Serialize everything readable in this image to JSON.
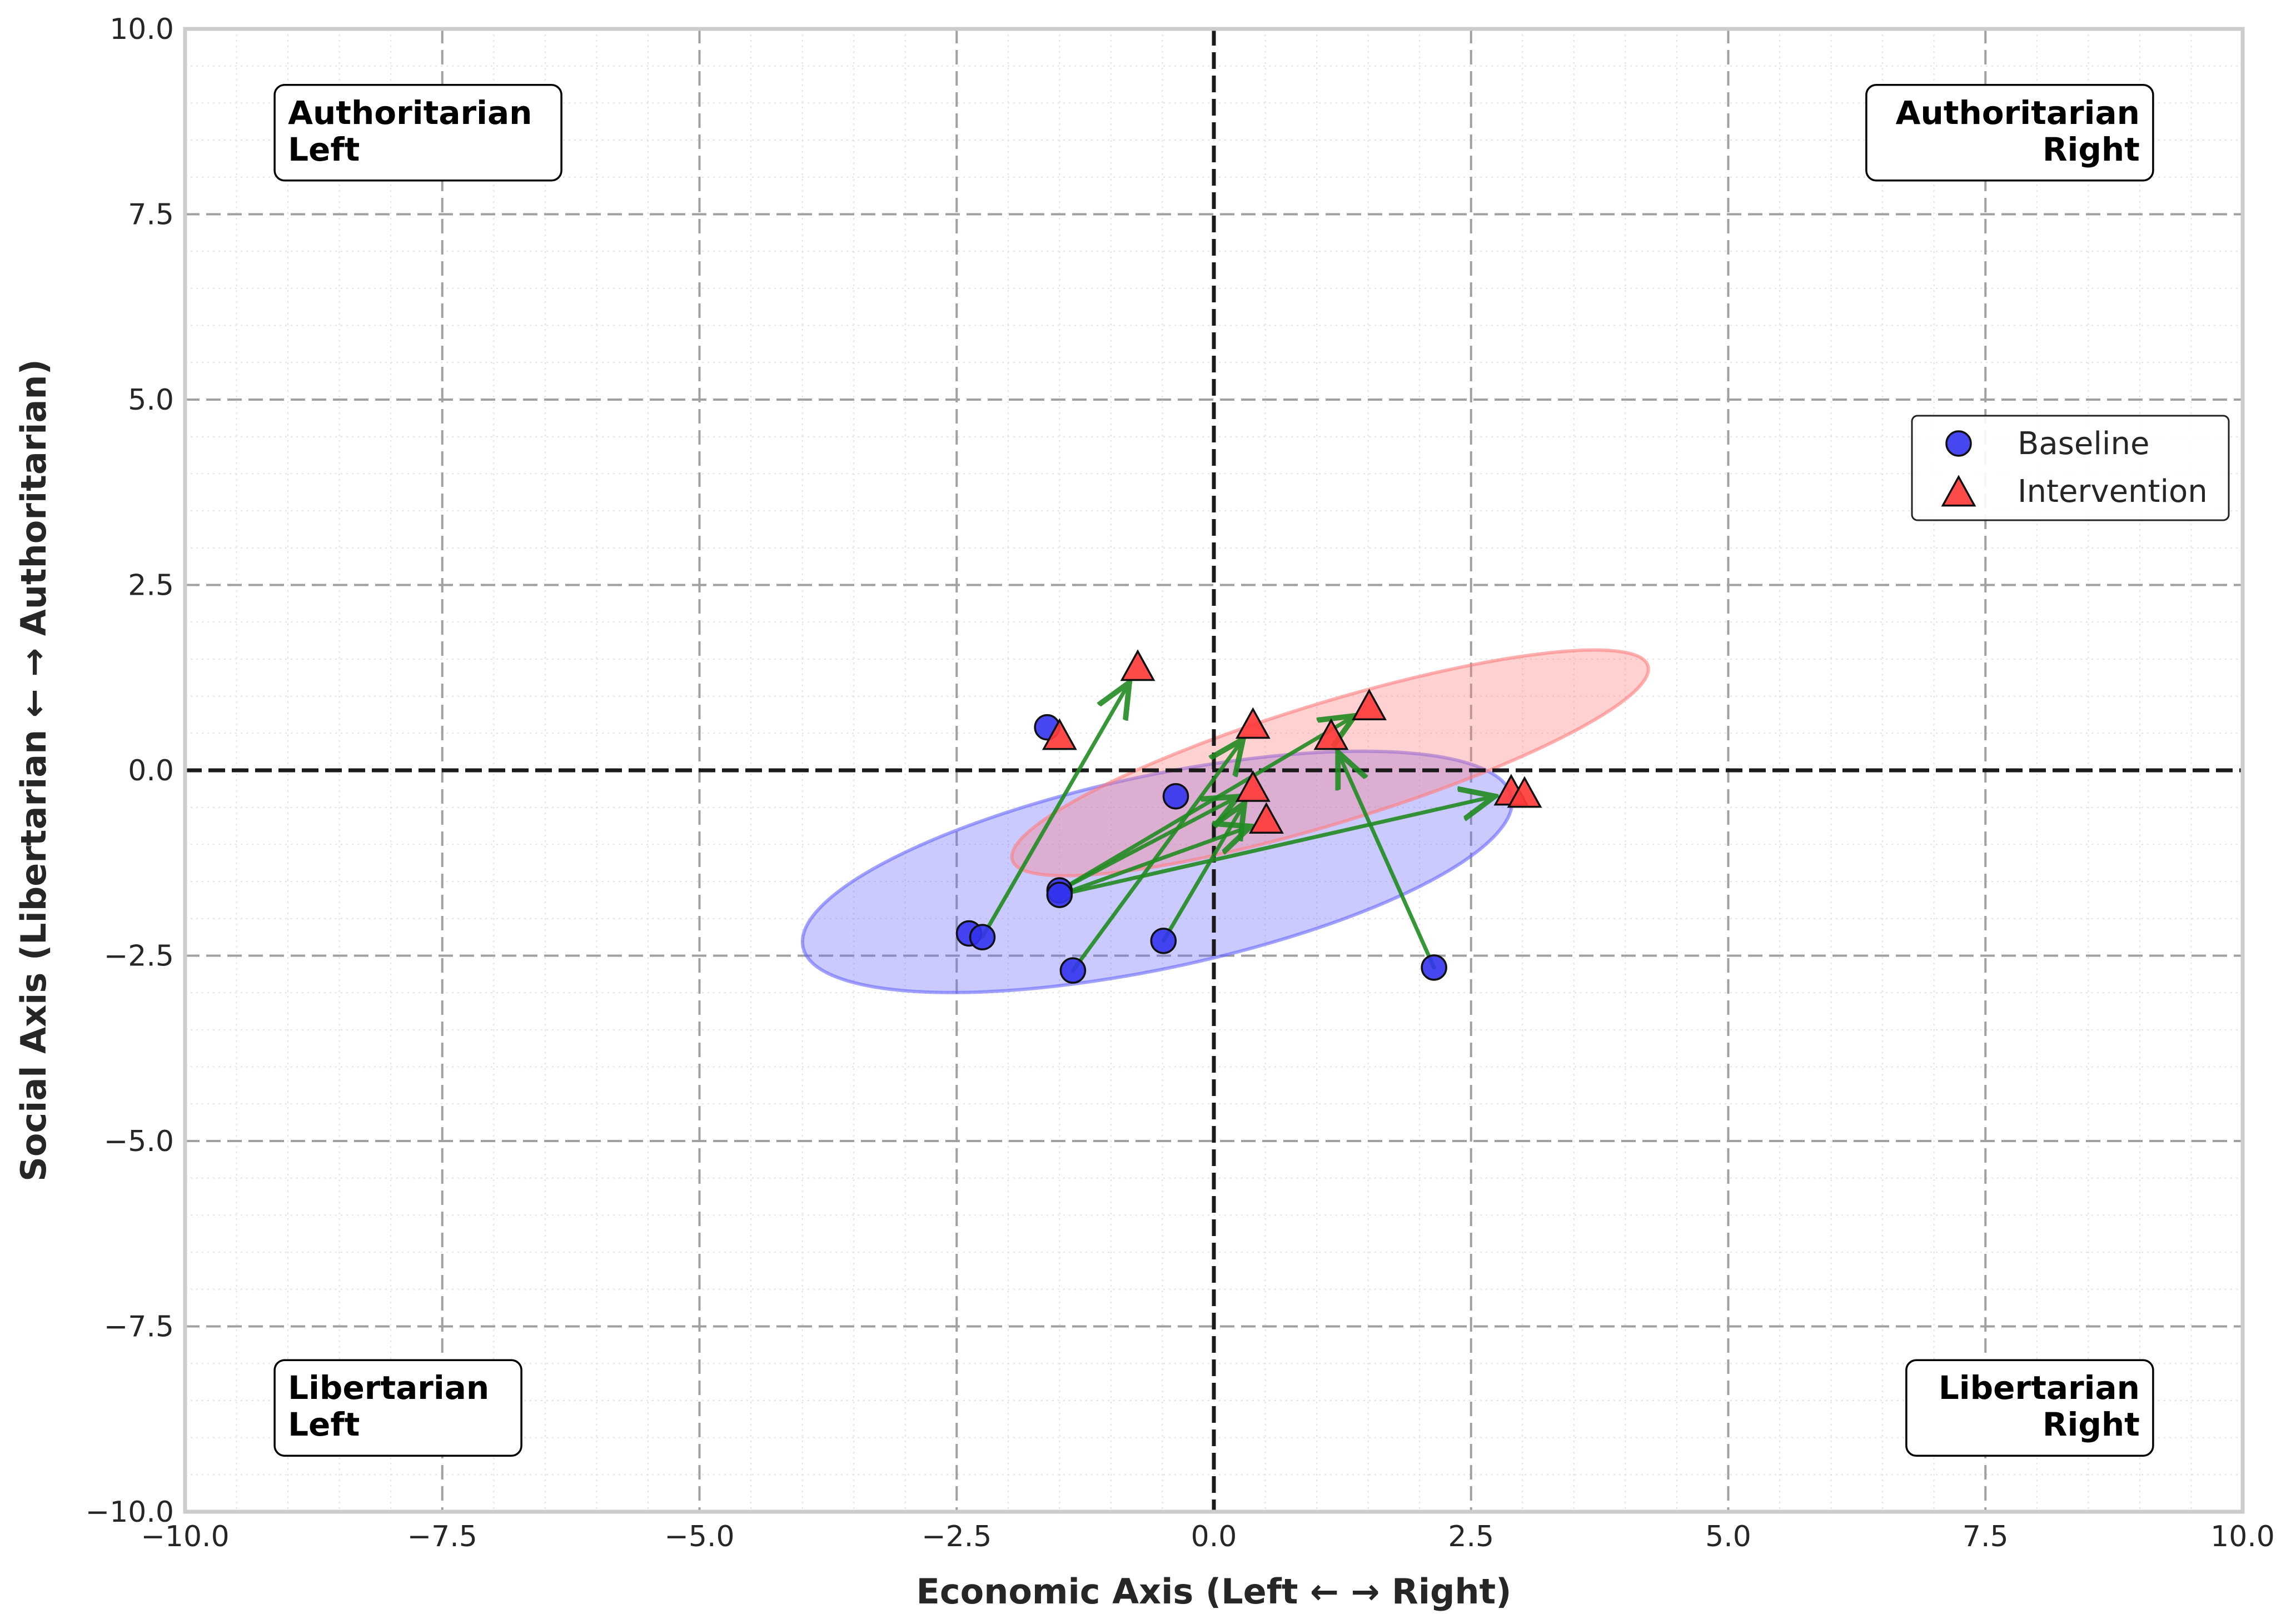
{
  "chart_data": {
    "type": "scatter",
    "title": "",
    "xlabel": "Economic Axis (Left ← → Right)",
    "ylabel": "Social Axis (Libertarian ← → Authoritarian)",
    "xlim": [
      -10,
      10
    ],
    "ylim": [
      -10,
      10
    ],
    "grid": true,
    "xticks": [
      -10,
      -7.5,
      -5,
      -2.5,
      0,
      2.5,
      5,
      7.5,
      10
    ],
    "xtick_labels": [
      "−10.0",
      "−7.5",
      "−5.0",
      "−2.5",
      "0.0",
      "2.5",
      "5.0",
      "7.5",
      "10.0"
    ],
    "yticks": [
      -10,
      -7.5,
      -5,
      -2.5,
      0,
      2.5,
      5,
      7.5,
      10
    ],
    "ytick_labels": [
      "−10.0",
      "−7.5",
      "−5.0",
      "−2.5",
      "0.0",
      "2.5",
      "5.0",
      "7.5",
      "10.0"
    ],
    "reference_lines": {
      "x": 0,
      "y": 0
    },
    "legend": {
      "placement": "center-right",
      "entries": [
        {
          "label": "Baseline",
          "marker": "circle",
          "color": "#3333ee"
        },
        {
          "label": "Intervention",
          "marker": "triangle",
          "color": "#ff3b3b"
        }
      ]
    },
    "series": [
      {
        "name": "Baseline",
        "marker": "circle",
        "color": "#3333ee",
        "x": [
          -1.62,
          -1.5,
          -1.5,
          -2.38,
          -2.25,
          -1.37,
          -0.49,
          -0.37,
          2.14
        ],
        "y": [
          0.58,
          -1.62,
          -1.68,
          -2.2,
          -2.25,
          -2.7,
          -2.3,
          -0.35,
          -2.66
        ]
      },
      {
        "name": "Intervention",
        "marker": "triangle",
        "color": "#ff3b3b",
        "x": [
          -1.5,
          -0.74,
          0.38,
          0.38,
          0.51,
          1.14,
          1.51,
          2.89,
          3.02
        ],
        "y": [
          0.45,
          1.38,
          0.6,
          -0.25,
          -0.68,
          0.45,
          0.85,
          -0.3,
          -0.33
        ]
      }
    ],
    "shifts": [
      {
        "from": [
          -2.25,
          -2.25
        ],
        "to": [
          -0.74,
          1.38
        ]
      },
      {
        "from": [
          -1.37,
          -2.7
        ],
        "to": [
          0.38,
          0.6
        ]
      },
      {
        "from": [
          -1.5,
          -1.62
        ],
        "to": [
          1.51,
          0.85
        ]
      },
      {
        "from": [
          -1.5,
          -1.68
        ],
        "to": [
          2.89,
          -0.3
        ]
      },
      {
        "from": [
          -1.5,
          -1.62
        ],
        "to": [
          0.38,
          -0.25
        ]
      },
      {
        "from": [
          -1.5,
          -1.68
        ],
        "to": [
          0.51,
          -0.68
        ]
      },
      {
        "from": [
          -0.49,
          -2.3
        ],
        "to": [
          0.38,
          -0.25
        ]
      },
      {
        "from": [
          2.14,
          -2.66
        ],
        "to": [
          1.14,
          0.45
        ]
      }
    ],
    "shift_color": "#228b22",
    "ellipses": [
      {
        "name": "Baseline spread",
        "cx": -0.55,
        "cy": -1.37,
        "rx": 3.52,
        "ry": 1.3,
        "angle_deg": -12,
        "color": "#6666ff"
      },
      {
        "name": "Intervention spread",
        "cx": 1.13,
        "cy": 0.1,
        "rx": 3.23,
        "ry": 0.81,
        "angle_deg": -17,
        "color": "#ff7b7b"
      }
    ],
    "annotations": [
      {
        "lines": [
          "Authoritarian",
          "Left"
        ],
        "x": -9.0,
        "y": 8.6,
        "align": "left"
      },
      {
        "lines": [
          "Authoritarian",
          "Right"
        ],
        "x": 9.0,
        "y": 8.6,
        "align": "right"
      },
      {
        "lines": [
          "Libertarian",
          "Left"
        ],
        "x": -9.0,
        "y": -8.6,
        "align": "left"
      },
      {
        "lines": [
          "Libertarian",
          "Right"
        ],
        "x": 9.0,
        "y": -8.6,
        "align": "right"
      }
    ]
  }
}
